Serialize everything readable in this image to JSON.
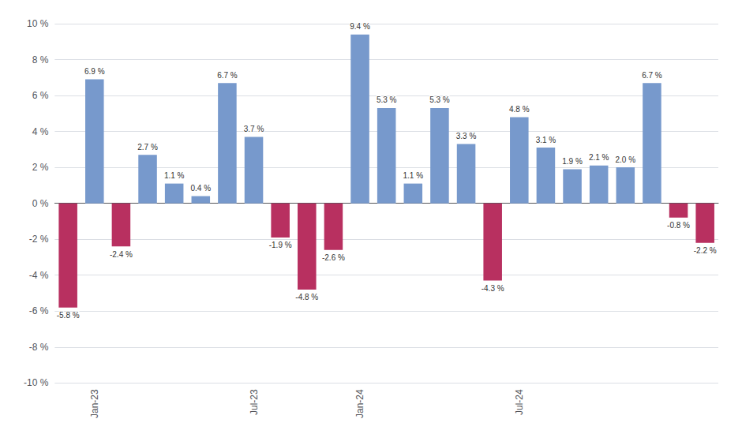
{
  "chart_data": {
    "type": "bar",
    "categories": [
      null,
      "Jan-23",
      null,
      null,
      null,
      null,
      null,
      "Jul-23",
      null,
      null,
      null,
      "Jan-24",
      null,
      null,
      null,
      null,
      null,
      "Jul-24",
      null,
      null,
      null,
      null,
      null,
      null,
      null
    ],
    "values": [
      -5.8,
      6.9,
      -2.4,
      2.7,
      1.1,
      0.4,
      6.7,
      3.7,
      -1.9,
      -4.8,
      -2.6,
      9.4,
      5.3,
      1.1,
      5.3,
      3.3,
      -4.3,
      4.8,
      3.1,
      1.9,
      2.1,
      2.0,
      6.7,
      -0.8,
      -2.2
    ],
    "value_labels": [
      "-5.8 %",
      "6.9 %",
      "-2.4 %",
      "2.7 %",
      "1.1 %",
      "0.4 %",
      "6.7 %",
      "3.7 %",
      "-1.9 %",
      "-4.8 %",
      "-2.6 %",
      "9.4 %",
      "5.3 %",
      "1.1 %",
      "5.3 %",
      "3.3 %",
      "-4.3 %",
      "4.8 %",
      "3.1 %",
      "1.9 %",
      "2.1 %",
      "2.0 %",
      "6.7 %",
      "-0.8 %",
      "-2.2 %"
    ],
    "colors": [
      "#b83060",
      "#7799cc",
      "#b83060",
      "#7799cc",
      "#7799cc",
      "#7799cc",
      "#7799cc",
      "#7799cc",
      "#b83060",
      "#b83060",
      "#b83060",
      "#7799cc",
      "#7799cc",
      "#7799cc",
      "#7799cc",
      "#7799cc",
      "#b83060",
      "#7799cc",
      "#7799cc",
      "#7799cc",
      "#7799cc",
      "#7799cc",
      "#7799cc",
      "#b83060",
      "#b83060"
    ],
    "ylim": [
      -10,
      10
    ],
    "yticks": [
      {
        "value": -10,
        "label": "-10 %"
      },
      {
        "value": -8,
        "label": "-8 %"
      },
      {
        "value": -6,
        "label": "-6 %"
      },
      {
        "value": -4,
        "label": "-4 %"
      },
      {
        "value": -2,
        "label": "-2 %"
      },
      {
        "value": 0,
        "label": "0 %"
      },
      {
        "value": 2,
        "label": "2 %"
      },
      {
        "value": 4,
        "label": "4 %"
      },
      {
        "value": 6,
        "label": "6 %"
      },
      {
        "value": 8,
        "label": "8 %"
      },
      {
        "value": 10,
        "label": "10 %"
      }
    ],
    "grid": true,
    "data_labels": true
  }
}
